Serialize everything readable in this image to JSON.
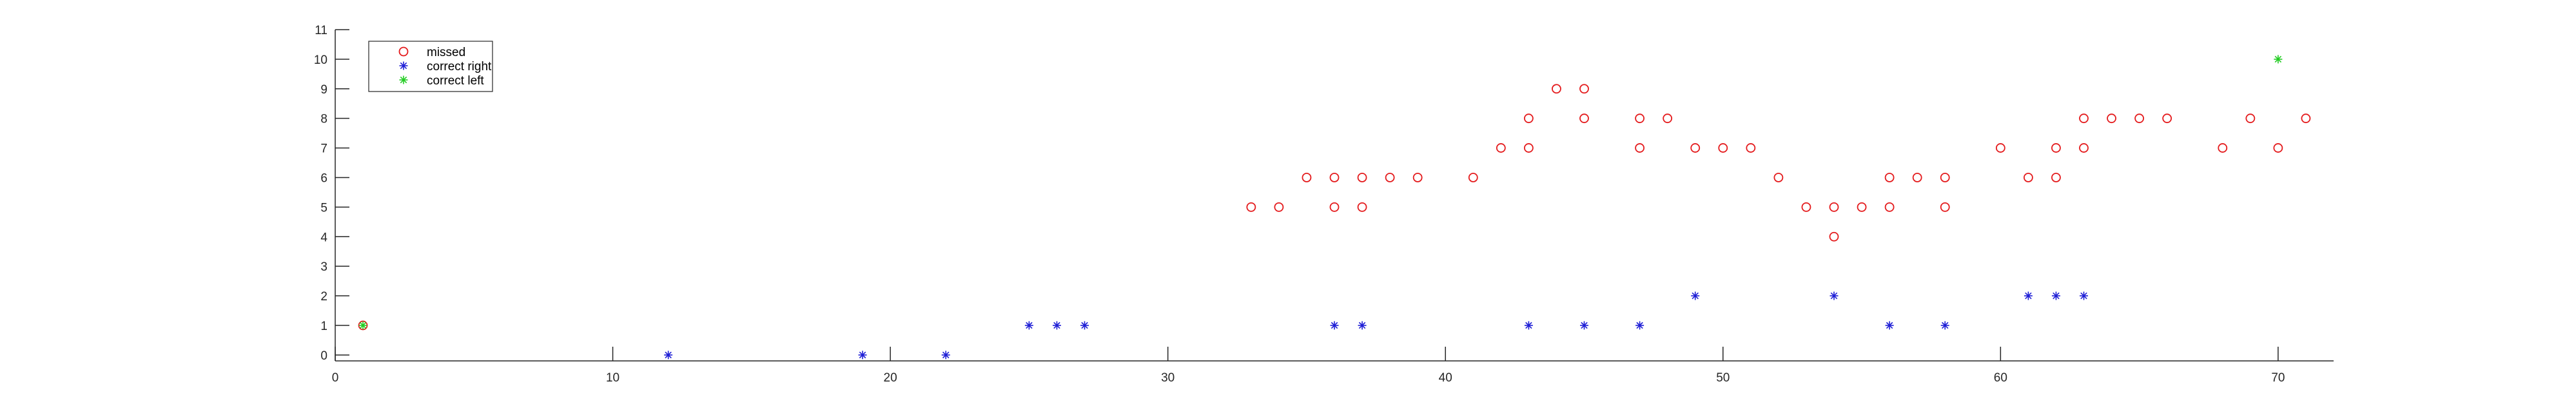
{
  "chart_data": {
    "type": "scatter",
    "title": "",
    "xlabel": "",
    "ylabel": "",
    "xlim": [
      0,
      72
    ],
    "ylim": [
      -0.2,
      11
    ],
    "xticks": [
      0,
      10,
      20,
      30,
      40,
      50,
      60,
      70
    ],
    "yticks": [
      0,
      1,
      2,
      3,
      4,
      5,
      6,
      7,
      8,
      9,
      10,
      11
    ],
    "grid": false,
    "legend_position": "top-left",
    "series": [
      {
        "name": "missed",
        "marker": "circle",
        "color": "#e41a1c",
        "points": [
          [
            1,
            1
          ],
          [
            33,
            5
          ],
          [
            34,
            5
          ],
          [
            35,
            6
          ],
          [
            36,
            6
          ],
          [
            36,
            5
          ],
          [
            37,
            6
          ],
          [
            37,
            5
          ],
          [
            38,
            6
          ],
          [
            39,
            6
          ],
          [
            41,
            6
          ],
          [
            42,
            7
          ],
          [
            43,
            8
          ],
          [
            43,
            7
          ],
          [
            44,
            9
          ],
          [
            45,
            9
          ],
          [
            45,
            8
          ],
          [
            47,
            8
          ],
          [
            47,
            7
          ],
          [
            48,
            8
          ],
          [
            49,
            7
          ],
          [
            50,
            7
          ],
          [
            51,
            7
          ],
          [
            52,
            6
          ],
          [
            53,
            5
          ],
          [
            54,
            5
          ],
          [
            54,
            4
          ],
          [
            55,
            5
          ],
          [
            56,
            6
          ],
          [
            56,
            5
          ],
          [
            57,
            6
          ],
          [
            58,
            6
          ],
          [
            58,
            5
          ],
          [
            60,
            7
          ],
          [
            61,
            6
          ],
          [
            62,
            7
          ],
          [
            62,
            6
          ],
          [
            63,
            8
          ],
          [
            63,
            7
          ],
          [
            64,
            8
          ],
          [
            65,
            8
          ],
          [
            66,
            8
          ],
          [
            68,
            7
          ],
          [
            69,
            8
          ],
          [
            70,
            7
          ],
          [
            71,
            8
          ]
        ]
      },
      {
        "name": "correct right",
        "marker": "asterisk",
        "color": "#1f1fd6",
        "points": [
          [
            12,
            0
          ],
          [
            19,
            0
          ],
          [
            22,
            0
          ],
          [
            25,
            1
          ],
          [
            26,
            1
          ],
          [
            27,
            1
          ],
          [
            36,
            1
          ],
          [
            37,
            1
          ],
          [
            43,
            1
          ],
          [
            45,
            1
          ],
          [
            47,
            1
          ],
          [
            49,
            2
          ],
          [
            54,
            2
          ],
          [
            56,
            1
          ],
          [
            58,
            1
          ],
          [
            61,
            2
          ],
          [
            62,
            2
          ],
          [
            63,
            2
          ]
        ]
      },
      {
        "name": "correct left",
        "marker": "asterisk",
        "color": "#22cc22",
        "points": [
          [
            1,
            1
          ],
          [
            70,
            10
          ]
        ]
      }
    ]
  }
}
